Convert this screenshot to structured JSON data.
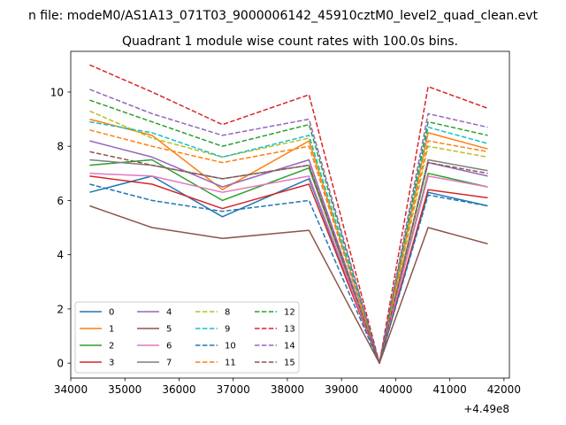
{
  "figure": {
    "suptitle": "n file: modeM0/AS1A13_071T03_9000006142_45910cztM0_level2_quad_clean.evt"
  },
  "chart_data": {
    "type": "line",
    "title": "Quadrant 1 module wise count rates with 100.0s bins.",
    "xlabel": "",
    "ylabel": "",
    "x_offset_label": "+4.49e8",
    "xlim": [
      34000,
      42100
    ],
    "ylim": [
      -0.55,
      11.5
    ],
    "xticks": [
      34000,
      35000,
      36000,
      37000,
      38000,
      39000,
      40000,
      41000,
      42000
    ],
    "xtick_labels": [
      "34000",
      "35000",
      "36000",
      "37000",
      "38000",
      "39000",
      "40000",
      "41000",
      "42000"
    ],
    "yticks": [
      0,
      2,
      4,
      6,
      8,
      10
    ],
    "ytick_labels": [
      "0",
      "2",
      "4",
      "6",
      "8",
      "10"
    ],
    "grid": false,
    "legend": {
      "placement": "lower-left",
      "columns": 4
    },
    "series": [
      {
        "name": "0",
        "color": "#1f77b4",
        "dash": "solid",
        "values": [
          6.3,
          6.9,
          5.4,
          6.8,
          0,
          6.3,
          5.8
        ]
      },
      {
        "name": "1",
        "color": "#ff7f0e",
        "dash": "solid",
        "values": [
          9.0,
          8.4,
          6.4,
          8.2,
          0,
          8.5,
          7.9
        ]
      },
      {
        "name": "2",
        "color": "#2ca02c",
        "dash": "solid",
        "values": [
          7.3,
          7.5,
          6.0,
          7.2,
          0,
          7.0,
          6.5
        ]
      },
      {
        "name": "3",
        "color": "#d62728",
        "dash": "solid",
        "values": [
          6.9,
          6.6,
          5.7,
          6.6,
          0,
          6.4,
          6.1
        ]
      },
      {
        "name": "4",
        "color": "#9467bd",
        "dash": "solid",
        "values": [
          8.2,
          7.6,
          6.5,
          7.5,
          0,
          7.4,
          6.9
        ]
      },
      {
        "name": "5",
        "color": "#8c564b",
        "dash": "solid",
        "values": [
          5.8,
          5.0,
          4.6,
          4.9,
          0,
          5.0,
          4.4
        ]
      },
      {
        "name": "6",
        "color": "#e377c2",
        "dash": "solid",
        "values": [
          7.0,
          6.9,
          6.3,
          6.9,
          0,
          6.9,
          6.5
        ]
      },
      {
        "name": "7",
        "color": "#7f7f7f",
        "dash": "solid",
        "values": [
          7.5,
          7.3,
          6.8,
          7.3,
          0,
          7.5,
          7.1
        ]
      },
      {
        "name": "8",
        "color": "#bcbd22",
        "dash": "dashed",
        "values": [
          9.3,
          8.3,
          7.6,
          8.3,
          0,
          8.0,
          7.6
        ]
      },
      {
        "name": "9",
        "color": "#17becf",
        "dash": "dashed",
        "values": [
          8.9,
          8.5,
          7.6,
          8.4,
          0,
          8.7,
          8.1
        ]
      },
      {
        "name": "10",
        "color": "#1f77b4",
        "dash": "dashed",
        "values": [
          6.6,
          6.0,
          5.6,
          6.0,
          0,
          6.2,
          5.8
        ]
      },
      {
        "name": "11",
        "color": "#ff7f0e",
        "dash": "dashed",
        "values": [
          8.6,
          8.0,
          7.4,
          8.0,
          0,
          8.2,
          7.8
        ]
      },
      {
        "name": "12",
        "color": "#2ca02c",
        "dash": "dashed",
        "values": [
          9.7,
          8.9,
          8.0,
          8.8,
          0,
          8.9,
          8.4
        ]
      },
      {
        "name": "13",
        "color": "#d62728",
        "dash": "dashed",
        "values": [
          11.0,
          10.0,
          8.8,
          9.9,
          0,
          10.2,
          9.4
        ]
      },
      {
        "name": "14",
        "color": "#9467bd",
        "dash": "dashed",
        "values": [
          10.1,
          9.2,
          8.4,
          9.0,
          0,
          9.2,
          8.7
        ]
      },
      {
        "name": "15",
        "color": "#8c564b",
        "dash": "dashed",
        "values": [
          7.8,
          7.3,
          6.8,
          7.3,
          0,
          7.4,
          7.0
        ]
      }
    ],
    "x": [
      34350,
      35500,
      36800,
      38400,
      39700,
      40600,
      41700
    ]
  }
}
